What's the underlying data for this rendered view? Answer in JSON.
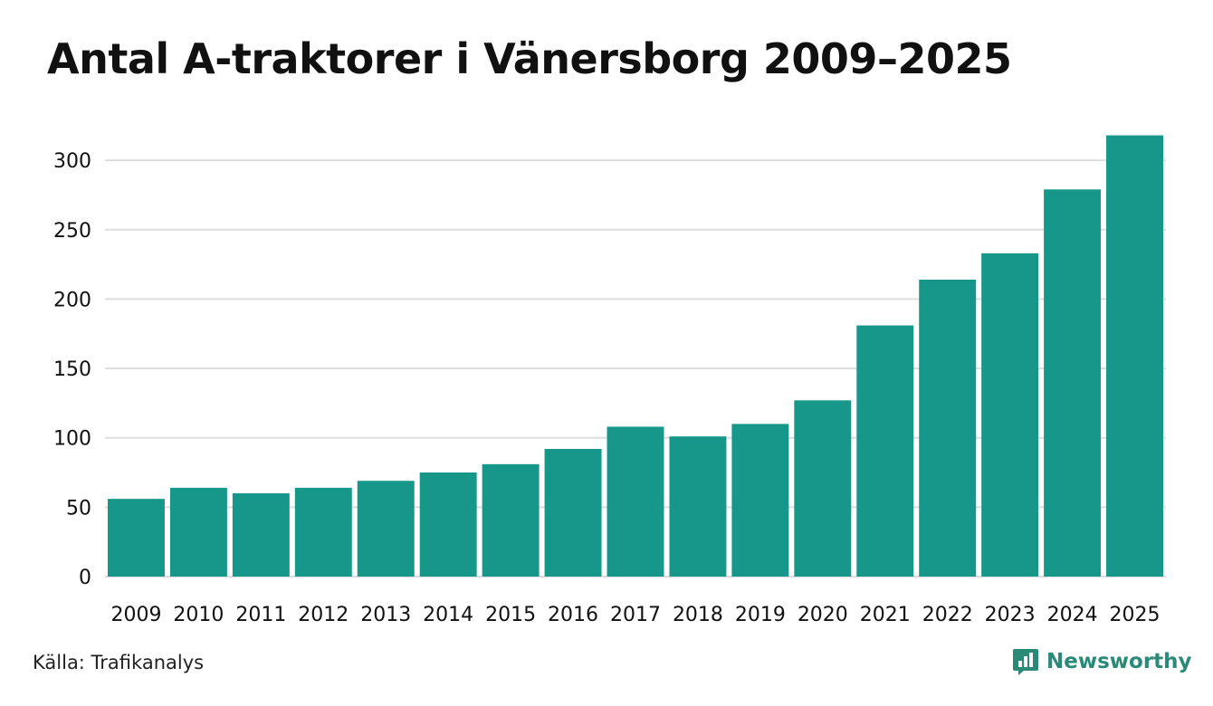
{
  "chart_data": {
    "type": "bar",
    "title": "Antal A-traktorer i Vänersborg 2009–2025",
    "xlabel": "",
    "ylabel": "",
    "categories": [
      "2009",
      "2010",
      "2011",
      "2012",
      "2013",
      "2014",
      "2015",
      "2016",
      "2017",
      "2018",
      "2019",
      "2020",
      "2021",
      "2022",
      "2023",
      "2024",
      "2025"
    ],
    "values": [
      56,
      64,
      60,
      64,
      69,
      75,
      81,
      92,
      108,
      101,
      110,
      127,
      181,
      214,
      233,
      279,
      318
    ],
    "ylim": [
      0,
      320
    ],
    "yticks": [
      0,
      50,
      100,
      150,
      200,
      250,
      300
    ],
    "grid": true,
    "bar_color": "#17978a",
    "grid_color": "#dddddd"
  },
  "footer": {
    "source": "Källa: Trafikanalys",
    "brand": "Newsworthy",
    "brand_icon": "newsworthy-logo-icon",
    "brand_color": "#2a8a78"
  }
}
